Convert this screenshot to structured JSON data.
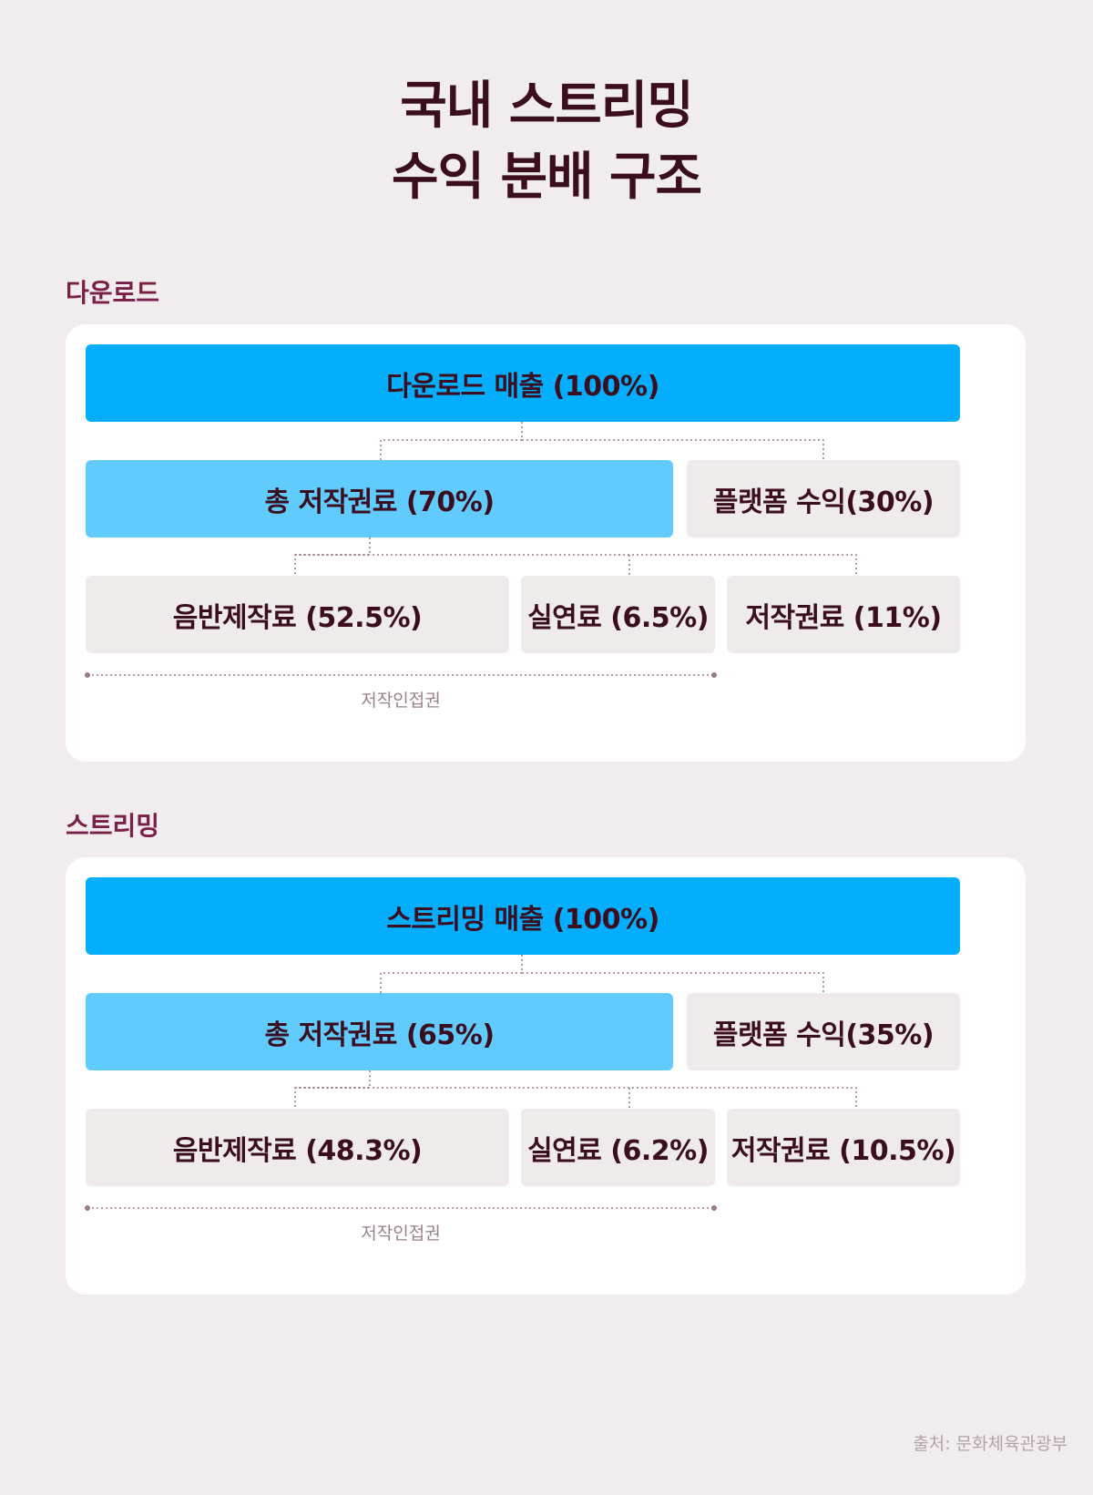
{
  "title": {
    "line1": "국내 스트리밍",
    "line2": "수익 분배 구조"
  },
  "sections": [
    {
      "label": "다운로드",
      "top": "다운로드 매출 (100%)",
      "left": "총 저작권료 (70%)",
      "right": "플랫폼 수익(30%)",
      "bottom": [
        "음반제작료 (52.5%)",
        "실연료 (6.5%)",
        "저작권료 (11%)"
      ],
      "bracket_label": "저작인접권"
    },
    {
      "label": "스트리밍",
      "top": "스트리밍 매출 (100%)",
      "left": "총 저작권료 (65%)",
      "right": "플랫폼 수익(35%)",
      "bottom": [
        "음반제작료 (48.3%)",
        "실연료 (6.2%)",
        "저작권료 (10.5%)"
      ],
      "bracket_label": "저작인접권"
    }
  ],
  "source": "출처: 문화체육관광부",
  "colors": {
    "background": "#f1edee",
    "card": "#ffffff",
    "revenue": "#05aefc",
    "royalty": "#62cbfd",
    "neutral": "#efebeb",
    "title_text": "#3a0d1f",
    "section_label": "#7a1f45",
    "connector": "#9a7a82"
  }
}
